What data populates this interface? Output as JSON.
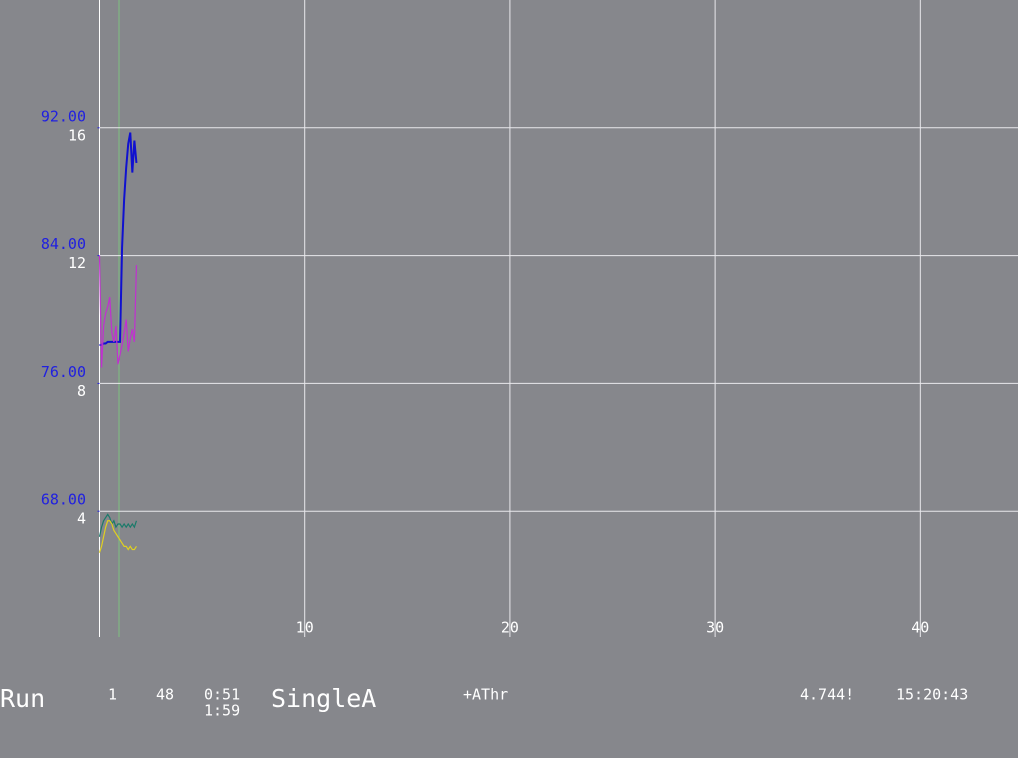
{
  "chart_data": {
    "type": "line",
    "x": [
      0,
      0.1,
      0.2,
      0.3,
      0.4,
      0.5,
      0.6,
      0.7,
      0.8,
      0.9,
      1.0,
      1.1,
      1.2,
      1.3,
      1.4,
      1.5,
      1.6,
      1.7,
      1.8
    ],
    "series": [
      {
        "color": "#1010d0",
        "axis": "y2",
        "values": [
          78.4,
          78.4,
          78.5,
          78.5,
          78.6,
          78.6,
          78.6,
          78.6,
          78.6,
          78.6,
          78.6,
          84.5,
          87.5,
          89.5,
          91.0,
          91.7,
          89.2,
          91.2,
          89.8
        ]
      },
      {
        "color": "#c030d0",
        "values": [
          12.0,
          8.5,
          9.8,
          10.2,
          10.4,
          10.7,
          9.6,
          9.3,
          9.8,
          8.6,
          8.9,
          9.2,
          9.6,
          10.0,
          9.0,
          9.4,
          9.7,
          9.3,
          11.7
        ]
      },
      {
        "color": "#1a7a6a",
        "values": [
          3.2,
          3.5,
          3.7,
          3.8,
          3.9,
          3.8,
          3.6,
          3.7,
          3.5,
          3.6,
          3.6,
          3.5,
          3.6,
          3.5,
          3.6,
          3.5,
          3.6,
          3.5,
          3.7
        ]
      },
      {
        "color": "#e0d020",
        "values": [
          2.7,
          2.9,
          3.2,
          3.5,
          3.7,
          3.7,
          3.6,
          3.4,
          3.3,
          3.2,
          3.1,
          3.0,
          2.9,
          2.9,
          2.8,
          2.9,
          2.8,
          2.8,
          2.9
        ]
      }
    ],
    "xlim": [
      0,
      44.76
    ],
    "xticks": [
      10,
      20,
      30,
      40
    ],
    "ylim": [
      0,
      20
    ],
    "yticks": [
      4,
      8,
      12,
      16
    ],
    "y2lim": [
      60,
      100
    ],
    "y2ticks": [
      {
        "value": 68,
        "label": "68.00"
      },
      {
        "value": 76,
        "label": "76.00"
      },
      {
        "value": 84,
        "label": "84.00"
      },
      {
        "value": 92,
        "label": "92.00"
      }
    ],
    "grid": true
  },
  "status": {
    "mode": "Run",
    "field1": "1",
    "field2": "48",
    "time_top": "0:51",
    "time_bottom": "1:59",
    "method": "SingleA",
    "flag": "+AThr",
    "reading": "4.744!",
    "clock": "15:20:43"
  }
}
